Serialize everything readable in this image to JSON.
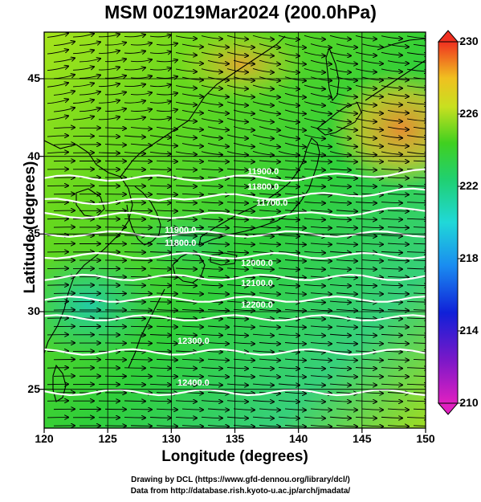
{
  "title": "MSM 00Z19Mar2024 (200.0hPa)",
  "map": {
    "xlabel": "Longitude (degrees)",
    "ylabel": "Latitude  (degrees)",
    "lon_range": [
      120,
      150
    ],
    "lat_range": [
      22.5,
      48
    ],
    "lon_ticks": [
      "120",
      "125",
      "130",
      "135",
      "140",
      "145",
      "150"
    ],
    "lat_ticks": [
      "25",
      "30",
      "35",
      "40",
      "45"
    ],
    "grid": true
  },
  "colorbar": {
    "min": 210,
    "max": 230,
    "labels": [
      "230",
      "226",
      "222",
      "218",
      "214",
      "210"
    ]
  },
  "contours": [
    {
      "label": "11900.0"
    },
    {
      "label": "11800.0"
    },
    {
      "label": "11700.0"
    },
    {
      "label": "11900.0"
    },
    {
      "label": "11800.0"
    },
    {
      "label": "12000.0"
    },
    {
      "label": "12100.0"
    },
    {
      "label": "12200.0"
    },
    {
      "label": "12300.0"
    },
    {
      "label": "12400.0"
    }
  ],
  "footer": {
    "line1": "Drawing by DCL (https://www.gfd-dennou.org/library/dcl/)",
    "line2": "Data from http://database.rish.kyoto-u.ac.jp/arch/jmadata/"
  },
  "colors": {
    "field_cool": "#22cc99",
    "field_mid": "#55dd22",
    "field_warm": "#ee8833",
    "contour": "#ffffff",
    "vector": "#000000"
  }
}
